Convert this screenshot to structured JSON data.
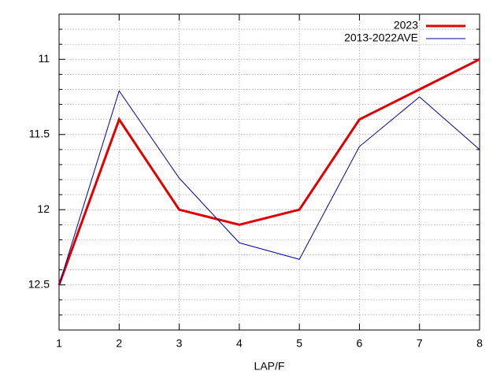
{
  "chart_data": {
    "type": "line",
    "x_label": "LAP/F",
    "x": [
      1,
      2,
      3,
      4,
      5,
      6,
      7,
      8
    ],
    "series": [
      {
        "name": "2023",
        "color": "#e00000",
        "values": [
          12.5,
          11.4,
          12.0,
          12.1,
          12.0,
          11.4,
          11.2,
          11.0
        ]
      },
      {
        "name": "2013-2022AVE",
        "color": "#0000a0",
        "values": [
          12.5,
          11.21,
          11.79,
          12.22,
          12.33,
          11.58,
          11.25,
          11.6
        ]
      }
    ],
    "xlim": [
      1,
      8
    ],
    "xticks": [
      1,
      2,
      3,
      4,
      5,
      6,
      7,
      8
    ],
    "ylim": [
      12.8,
      10.7
    ],
    "yticks": [
      11,
      11.5,
      12,
      12.5
    ],
    "yminorticks": [
      10.8,
      10.9,
      11.1,
      11.2,
      11.3,
      11.4,
      11.6,
      11.7,
      11.8,
      11.9,
      12.1,
      12.2,
      12.3,
      12.4,
      12.6,
      12.7
    ],
    "grid": true,
    "legend": "top-right"
  }
}
